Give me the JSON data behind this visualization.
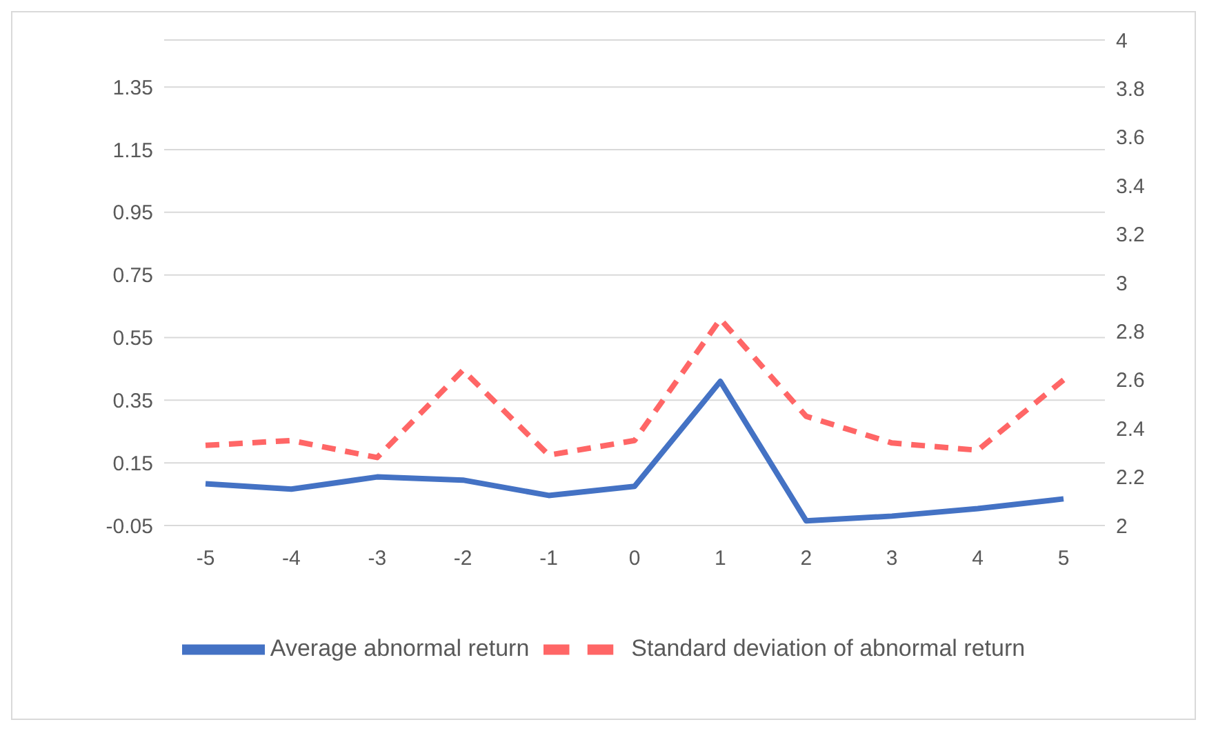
{
  "chart_data": {
    "type": "line",
    "categories": [
      "-5",
      "-4",
      "-3",
      "-2",
      "-1",
      "0",
      "1",
      "2",
      "3",
      "4",
      "5"
    ],
    "series": [
      {
        "name": "Average abnormal return",
        "color": "#4472c4",
        "values": [
          0.083,
          0.066,
          0.105,
          0.095,
          0.046,
          0.075,
          0.41,
          -0.035,
          -0.02,
          0.004,
          0.035
        ]
      },
      {
        "name": "Standard deviation of abnormal return",
        "color": "#ff6666",
        "axis": "y2",
        "line_style": "dashed",
        "values": [
          2.33,
          2.35,
          2.28,
          2.64,
          2.29,
          2.35,
          2.85,
          2.45,
          2.34,
          2.31,
          2.6
        ]
      }
    ],
    "ylim": [
      -0.05,
      1.5
    ],
    "yticks": [
      -0.05,
      0.15,
      0.35,
      0.55,
      0.75,
      0.95,
      1.15,
      1.35
    ],
    "y2lim": [
      2,
      4
    ],
    "y2ticks": [
      2,
      2.2,
      2.4,
      2.6,
      2.8,
      3,
      3.2,
      3.4,
      3.6,
      3.8,
      4
    ],
    "grid": "y",
    "legend": "bottom",
    "marker": "none"
  }
}
